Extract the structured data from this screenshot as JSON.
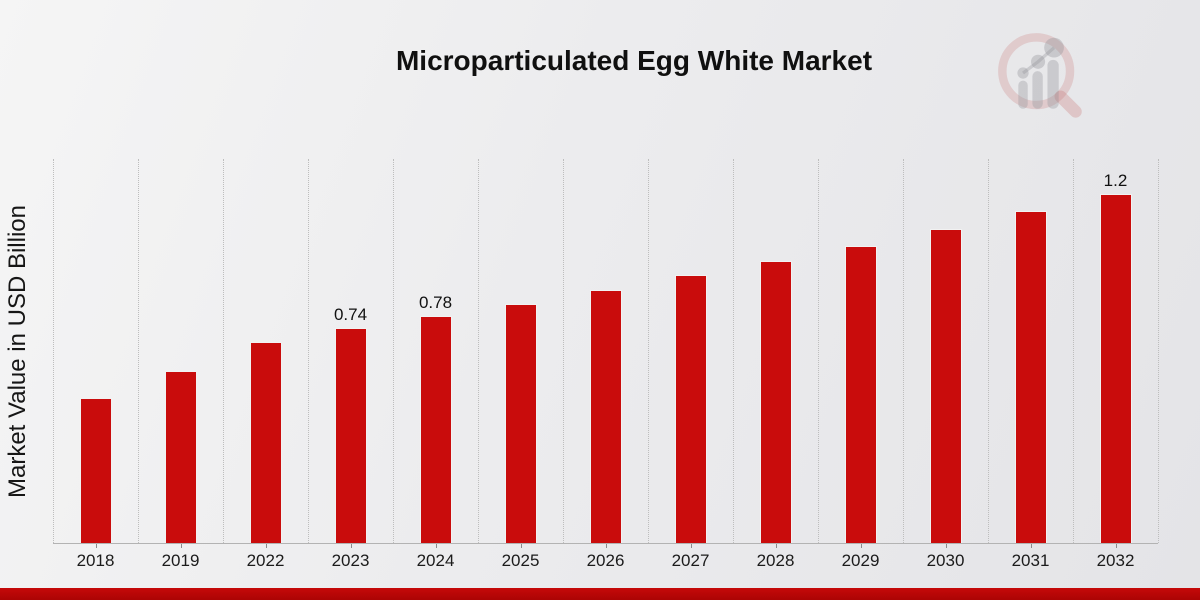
{
  "title": "Microparticulated Egg White Market",
  "y_axis_label": "Market Value in USD Billion",
  "logo": {
    "name": "magnifier-bar-chart-logo"
  },
  "colors": {
    "bar": "#c90c0c",
    "accent_strip": "#b50606",
    "gridline": "#bdbdbd",
    "axis_line": "#b3b3b3",
    "text": "#111111",
    "background": "#ececee"
  },
  "chart_data": {
    "type": "bar",
    "title": "Microparticulated Egg White Market",
    "xlabel": "",
    "ylabel": "Market Value in USD Billion",
    "categories": [
      "2018",
      "2019",
      "2022",
      "2023",
      "2024",
      "2025",
      "2026",
      "2027",
      "2028",
      "2029",
      "2030",
      "2031",
      "2032"
    ],
    "values": [
      0.5,
      0.59,
      0.69,
      0.74,
      0.78,
      0.82,
      0.87,
      0.92,
      0.97,
      1.02,
      1.08,
      1.14,
      1.2
    ],
    "data_labels": {
      "2023": "0.74",
      "2024": "0.78",
      "2032": "1.2"
    },
    "ylim": [
      0,
      1.32
    ],
    "grid": "vertical-dotted",
    "legend": "none",
    "bar_color": "#c90c0c"
  }
}
